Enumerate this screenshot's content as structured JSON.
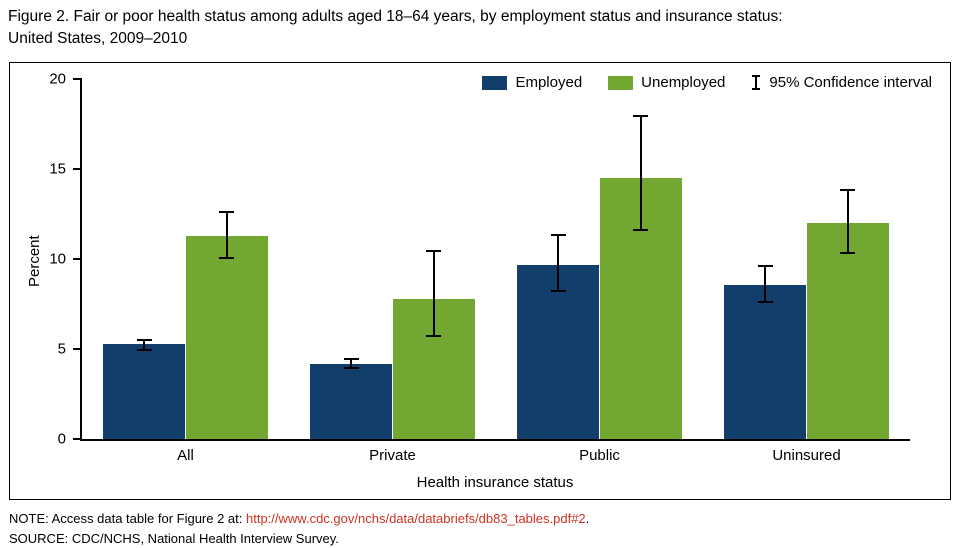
{
  "header": {
    "title_line1": "Figure 2. Fair or poor health status among adults aged 18–64 years, by employment status and insurance status:",
    "title_line2": "United States, 2009–2010"
  },
  "chart_data": {
    "type": "bar",
    "title": "Fair or poor health status among adults aged 18–64 years, by employment status and insurance status: United States, 2009–2010",
    "categories": [
      "All",
      "Private",
      "Public",
      "Uninsured"
    ],
    "series": [
      {
        "name": "Employed",
        "color": "#123e6b",
        "values": [
          5.3,
          4.2,
          9.7,
          8.6
        ],
        "ci_low": [
          4.9,
          3.9,
          8.2,
          7.6
        ],
        "ci_high": [
          5.6,
          4.5,
          11.4,
          9.7
        ]
      },
      {
        "name": "Unemployed",
        "color": "#72a832",
        "values": [
          11.3,
          7.8,
          14.5,
          12.0
        ],
        "ci_low": [
          10.0,
          5.7,
          11.6,
          10.3
        ],
        "ci_high": [
          12.7,
          10.5,
          18.0,
          13.9
        ]
      }
    ],
    "legend_ci_label": "95% Confidence interval",
    "xlabel": "Health insurance status",
    "ylabel": "Percent",
    "ylim": [
      0,
      20
    ],
    "yticks": [
      0,
      5,
      10,
      15,
      20
    ],
    "grid": false,
    "legend_position": "top-right-inside",
    "bar_width_pct": 10
  },
  "footer": {
    "note_prefix": "NOTE: Access data table for Figure 2 at: ",
    "note_link": "http://www.cdc.gov/nchs/data/databriefs/db83_tables.pdf#2",
    "note_suffix": ".",
    "source": "SOURCE: CDC/NCHS, National Health Interview Survey.",
    "link_color": "#cc3322"
  }
}
